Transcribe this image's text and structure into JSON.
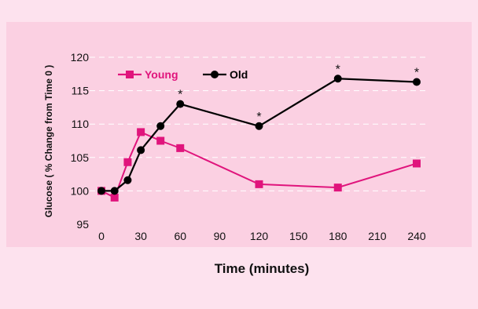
{
  "colors": {
    "outer_background": "#fde2ee",
    "plot_background": "#fbd0e2",
    "young": "#e0147c",
    "old": "#000000",
    "grid": "#ffffff"
  },
  "chart_data": {
    "type": "line",
    "xlabel": "Time (minutes)",
    "ylabel": "Glucose ( % Change from Time 0 )",
    "xlim": [
      0,
      240
    ],
    "ylim": [
      95,
      120
    ],
    "xticks": [
      0,
      30,
      60,
      90,
      120,
      150,
      180,
      210,
      240
    ],
    "yticks": [
      95,
      100,
      105,
      110,
      115,
      120
    ],
    "grid": "horizontal dashed",
    "legend_position": "top-left",
    "series": [
      {
        "name": "Young",
        "marker": "square",
        "x": [
          0,
          10,
          20,
          30,
          45,
          60,
          120,
          180,
          240
        ],
        "y": [
          100,
          99,
          104.3,
          108.8,
          107.5,
          106.4,
          101,
          100.5,
          104.1
        ]
      },
      {
        "name": "Old",
        "marker": "circle",
        "x": [
          0,
          10,
          20,
          30,
          45,
          60,
          120,
          180,
          240
        ],
        "y": [
          100,
          100,
          101.6,
          106.1,
          109.7,
          113,
          109.7,
          116.8,
          116.3
        ]
      }
    ],
    "annotations": [
      {
        "text": "*",
        "x": 60,
        "y": 113
      },
      {
        "text": "*",
        "x": 120,
        "y": 109.7
      },
      {
        "text": "*",
        "x": 180,
        "y": 116.8
      },
      {
        "text": "*",
        "x": 240,
        "y": 116.3
      }
    ]
  }
}
